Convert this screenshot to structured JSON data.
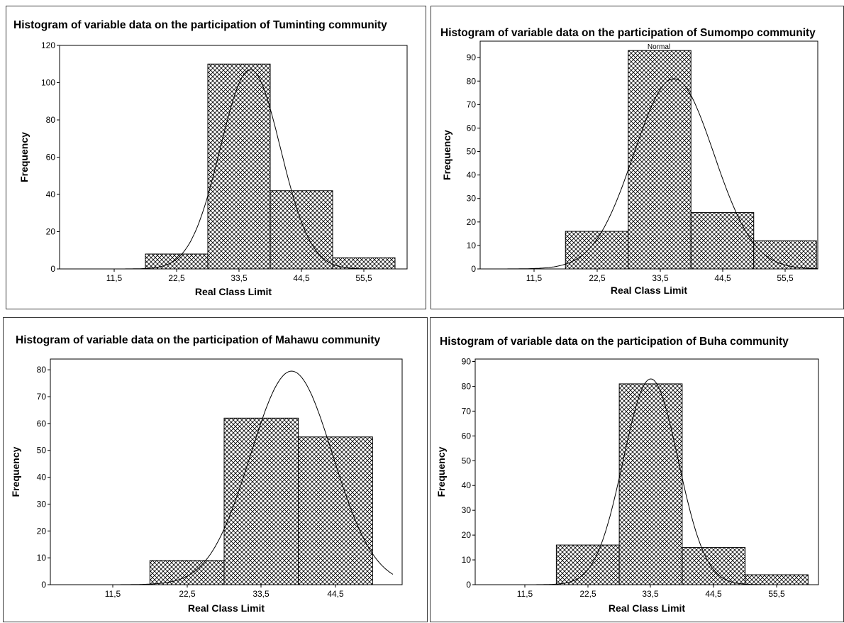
{
  "charts": [
    {
      "title": "Histogram of variable data on the participation of Tuminting community",
      "subtitle": "",
      "chart_data": {
        "type": "bar",
        "title": "Histogram of variable data on the participation of Tuminting community",
        "xlabel": "Real Class Limit",
        "ylabel": "Frequency",
        "x_ticks": [
          "11,5",
          "22,5",
          "33,5",
          "44,5",
          "55,5"
        ],
        "xlim": [
          0,
          66
        ],
        "ylim": [
          0,
          120
        ],
        "y_ticks": [
          0,
          20,
          40,
          60,
          80,
          100,
          120
        ],
        "bins": [
          [
            17,
            28
          ],
          [
            28,
            39
          ],
          [
            39,
            50
          ],
          [
            50,
            61
          ]
        ],
        "values": [
          8,
          110,
          42,
          6
        ],
        "fit_curve": {
          "type": "normal",
          "mean": 35.5,
          "sd": 5.3,
          "peak": 107,
          "x_range": [
            9.5,
            64
          ]
        },
        "bar_fill": "crosshatch"
      }
    },
    {
      "title": "Histogram of variable data on the participation of Sumompo community",
      "subtitle": "Normal",
      "chart_data": {
        "type": "bar",
        "title": "Histogram of variable data on the participation of Sumompo community",
        "xlabel": "Real Class Limit",
        "ylabel": "Frequency",
        "x_ticks": [
          "11,5",
          "22,5",
          "33,5",
          "44,5",
          "55,5"
        ],
        "xlim": [
          0,
          62
        ],
        "ylim": [
          0,
          97
        ],
        "y_ticks": [
          0,
          10,
          20,
          30,
          40,
          50,
          60,
          70,
          80,
          90
        ],
        "bins": [
          [
            17,
            28
          ],
          [
            28,
            39
          ],
          [
            39,
            50
          ],
          [
            50,
            61
          ]
        ],
        "values": [
          16,
          93,
          24,
          12
        ],
        "fit_curve": {
          "type": "normal",
          "mean": 36,
          "sd": 7.0,
          "peak": 81,
          "x_range": [
            5,
            62
          ]
        },
        "bar_fill": "crosshatch"
      }
    },
    {
      "title": "Histogram of variable data on the participation of Mahawu community",
      "subtitle": "",
      "chart_data": {
        "type": "bar",
        "title": "Histogram of variable data on the participation of Mahawu community",
        "xlabel": "Real Class Limit",
        "ylabel": "Frequency",
        "x_ticks": [
          "11,5",
          "22,5",
          "33,5",
          "44,5"
        ],
        "xlim": [
          0,
          53
        ],
        "ylim": [
          0,
          84
        ],
        "y_ticks": [
          0,
          10,
          20,
          30,
          40,
          50,
          60,
          70,
          80
        ],
        "bins": [
          [
            17,
            28
          ],
          [
            28,
            39
          ],
          [
            39,
            50
          ]
        ],
        "values": [
          9,
          62,
          55
        ],
        "fit_curve": {
          "type": "normal",
          "mean": 38,
          "sd": 6.1,
          "peak": 79.5,
          "x_range": [
            9.5,
            53
          ]
        },
        "bar_fill": "crosshatch"
      }
    },
    {
      "title": "Histogram of variable data on the participation of Buha community",
      "subtitle": "",
      "chart_data": {
        "type": "bar",
        "title": "Histogram of variable data on the participation of Buha community",
        "xlabel": "Real Class Limit",
        "ylabel": "Frequency",
        "x_ticks": [
          "11,5",
          "22,5",
          "33,5",
          "44,5",
          "55,5"
        ],
        "xlim": [
          0,
          63
        ],
        "ylim": [
          0,
          91
        ],
        "y_ticks": [
          0,
          10,
          20,
          30,
          40,
          50,
          60,
          70,
          80,
          90
        ],
        "bins": [
          [
            17,
            28
          ],
          [
            28,
            39
          ],
          [
            39,
            50
          ],
          [
            50,
            61
          ]
        ],
        "values": [
          16,
          81,
          15,
          4
        ],
        "fit_curve": {
          "type": "normal",
          "mean": 33.5,
          "sd": 4.8,
          "peak": 83,
          "x_range": [
            7,
            58
          ]
        },
        "bar_fill": "crosshatch"
      }
    }
  ]
}
